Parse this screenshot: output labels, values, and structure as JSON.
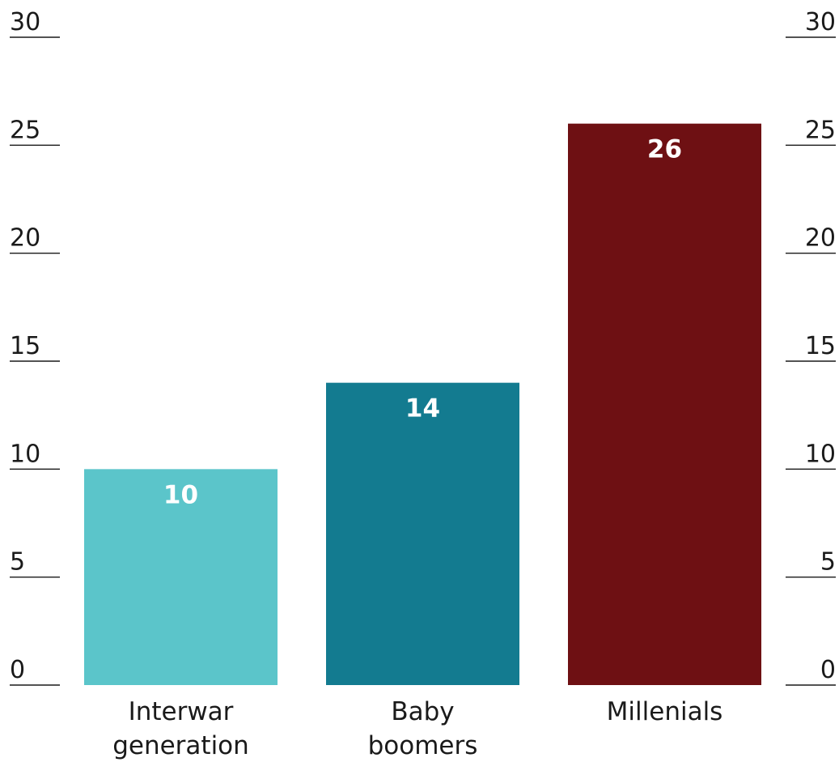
{
  "chart_data": {
    "type": "bar",
    "title": "",
    "xlabel": "",
    "ylabel": "",
    "ylim": [
      0,
      30
    ],
    "yticks": [
      0,
      5,
      10,
      15,
      20,
      25,
      30
    ],
    "y_axis_sides": [
      "left",
      "right"
    ],
    "grid": "tick-marks-only",
    "legend": "none",
    "categories": [
      {
        "lines": [
          "Interwar",
          "generation"
        ]
      },
      {
        "lines": [
          "Baby",
          "boomers"
        ]
      },
      {
        "lines": [
          "Millenials"
        ]
      }
    ],
    "values": [
      10,
      14,
      26
    ],
    "data_labels": [
      "10",
      "14",
      "26"
    ],
    "colors": [
      "#5bc5ca",
      "#137b90",
      "#6e1013"
    ]
  }
}
